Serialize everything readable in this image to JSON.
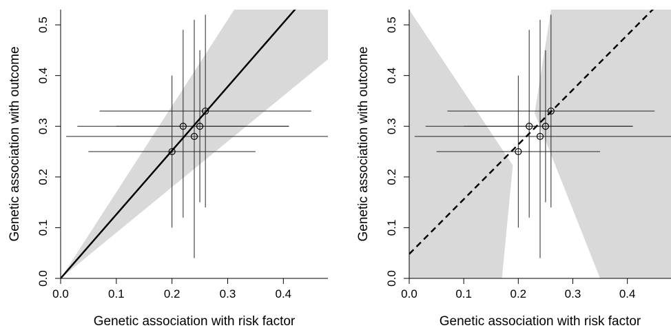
{
  "chart_data": [
    {
      "type": "scatter",
      "xlabel": "Genetic association with risk factor",
      "ylabel": "Genetic association with outcome",
      "xlim": [
        0,
        0.48
      ],
      "ylim": [
        0,
        0.53
      ],
      "xticks": [
        "0.0",
        "0.1",
        "0.2",
        "0.3",
        "0.4"
      ],
      "yticks": [
        "0.0",
        "0.1",
        "0.2",
        "0.3",
        "0.4",
        "0.5"
      ],
      "grid": false,
      "points": [
        {
          "x": 0.2,
          "y": 0.25,
          "x_ci": [
            0.05,
            0.35
          ],
          "y_ci": [
            0.1,
            0.4
          ]
        },
        {
          "x": 0.22,
          "y": 0.3,
          "x_ci": [
            0.03,
            0.41
          ],
          "y_ci": [
            0.12,
            0.49
          ]
        },
        {
          "x": 0.24,
          "y": 0.28,
          "x_ci": [
            0.01,
            0.48
          ],
          "y_ci": [
            0.04,
            0.51
          ]
        },
        {
          "x": 0.25,
          "y": 0.3,
          "x_ci": [
            0.1,
            0.41
          ],
          "y_ci": [
            0.15,
            0.45
          ]
        },
        {
          "x": 0.26,
          "y": 0.33,
          "x_ci": [
            0.07,
            0.45
          ],
          "y_ci": [
            0.14,
            0.52
          ]
        }
      ],
      "fit_line": {
        "intercept": 0.0,
        "slope": 1.26,
        "style": "solid"
      },
      "confidence_band": {
        "lower_slope": 0.9,
        "upper_slope": 1.7,
        "color": "#d9d9d9"
      }
    },
    {
      "type": "scatter",
      "xlabel": "Genetic association with risk factor",
      "ylabel": "Genetic association with outcome",
      "xlim": [
        0,
        0.48
      ],
      "ylim": [
        0,
        0.53
      ],
      "xticks": [
        "0.0",
        "0.1",
        "0.2",
        "0.3",
        "0.4"
      ],
      "yticks": [
        "0.0",
        "0.1",
        "0.2",
        "0.3",
        "0.4",
        "0.5"
      ],
      "grid": false,
      "points": [
        {
          "x": 0.2,
          "y": 0.25,
          "x_ci": [
            0.05,
            0.35
          ],
          "y_ci": [
            0.1,
            0.4
          ]
        },
        {
          "x": 0.22,
          "y": 0.3,
          "x_ci": [
            0.03,
            0.41
          ],
          "y_ci": [
            0.12,
            0.49
          ]
        },
        {
          "x": 0.24,
          "y": 0.28,
          "x_ci": [
            0.01,
            0.48
          ],
          "y_ci": [
            0.04,
            0.51
          ]
        },
        {
          "x": 0.25,
          "y": 0.3,
          "x_ci": [
            0.1,
            0.41
          ],
          "y_ci": [
            0.15,
            0.45
          ]
        },
        {
          "x": 0.26,
          "y": 0.33,
          "x_ci": [
            0.07,
            0.45
          ],
          "y_ci": [
            0.14,
            0.52
          ]
        }
      ],
      "fit_line": {
        "intercept": 0.048,
        "slope": 1.08,
        "style": "dashed"
      },
      "confidence_band": {
        "color": "#d9d9d9",
        "lower_fan": [
          [
            0.0,
            0.53
          ],
          [
            0.19,
            0.223
          ],
          [
            0.17,
            0.0
          ],
          [
            0.0,
            0.0
          ]
        ],
        "upper_fan": [
          [
            0.26,
            0.53
          ],
          [
            0.48,
            0.53
          ],
          [
            0.48,
            0.0
          ],
          [
            0.35,
            0.0
          ],
          [
            0.23,
            0.326
          ]
        ]
      }
    }
  ]
}
